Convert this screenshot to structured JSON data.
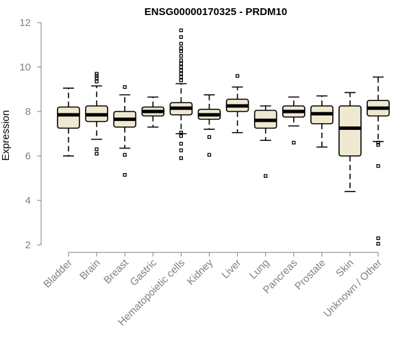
{
  "chart_data": {
    "type": "boxplot",
    "title": "ENSG00000170325 - PRDM10",
    "xlabel": "",
    "ylabel": "Expression",
    "ylim": [
      2,
      12
    ],
    "yticks": [
      2,
      4,
      6,
      8,
      10,
      12
    ],
    "grid": false,
    "legend": "none",
    "colors": {
      "box_fill": "#efe9d2",
      "stroke": "#000000",
      "axis": "#808080",
      "label": "#808080"
    },
    "categories": [
      "Bladder",
      "Brain",
      "Breast",
      "Gastric",
      "Hematopoietic cells",
      "Kidney",
      "Liver",
      "Lung",
      "Pancreas",
      "Prostate",
      "Skin",
      "Unknown / Other"
    ],
    "boxes": [
      {
        "label": "Bladder",
        "whisker_low": 6.0,
        "q1": 7.25,
        "median": 7.85,
        "q3": 8.2,
        "whisker_high": 9.05,
        "outliers": []
      },
      {
        "label": "Brain",
        "whisker_low": 6.75,
        "q1": 7.55,
        "median": 7.85,
        "q3": 8.25,
        "whisker_high": 9.15,
        "outliers": [
          9.35,
          9.5,
          9.6,
          9.7,
          6.3,
          6.1
        ]
      },
      {
        "label": "Breast",
        "whisker_low": 6.35,
        "q1": 7.3,
        "median": 7.65,
        "q3": 8.0,
        "whisker_high": 8.75,
        "outliers": [
          9.1,
          6.05,
          5.15
        ]
      },
      {
        "label": "Gastric",
        "whisker_low": 7.3,
        "q1": 7.8,
        "median": 8.0,
        "q3": 8.2,
        "whisker_high": 8.65,
        "outliers": []
      },
      {
        "label": "Hematopoietic cells",
        "whisker_low": 7.0,
        "q1": 7.85,
        "median": 8.15,
        "q3": 8.4,
        "whisker_high": 9.25,
        "outliers": [
          11.65,
          11.35,
          11.05,
          10.85,
          10.7,
          10.5,
          10.3,
          10.15,
          10.0,
          9.85,
          9.7,
          9.55,
          9.4,
          7.05,
          6.9,
          6.55,
          6.25,
          5.9
        ]
      },
      {
        "label": "Kidney",
        "whisker_low": 7.2,
        "q1": 7.65,
        "median": 7.85,
        "q3": 8.1,
        "whisker_high": 8.75,
        "outliers": [
          6.85,
          6.05
        ]
      },
      {
        "label": "Liver",
        "whisker_low": 7.05,
        "q1": 8.0,
        "median": 8.25,
        "q3": 8.55,
        "whisker_high": 9.1,
        "outliers": [
          9.6
        ]
      },
      {
        "label": "Lung",
        "whisker_low": 6.7,
        "q1": 7.25,
        "median": 7.6,
        "q3": 8.05,
        "whisker_high": 8.25,
        "outliers": [
          5.1
        ]
      },
      {
        "label": "Pancreas",
        "whisker_low": 7.35,
        "q1": 7.75,
        "median": 8.0,
        "q3": 8.25,
        "whisker_high": 8.65,
        "outliers": [
          6.6
        ]
      },
      {
        "label": "Prostate",
        "whisker_low": 6.4,
        "q1": 7.45,
        "median": 7.9,
        "q3": 8.25,
        "whisker_high": 8.7,
        "outliers": []
      },
      {
        "label": "Skin",
        "whisker_low": 4.4,
        "q1": 6.0,
        "median": 7.25,
        "q3": 8.25,
        "whisker_high": 8.85,
        "outliers": []
      },
      {
        "label": "Unknown / Other",
        "whisker_low": 6.65,
        "q1": 7.8,
        "median": 8.15,
        "q3": 8.5,
        "whisker_high": 9.55,
        "outliers": [
          6.6,
          6.5,
          5.55,
          2.3,
          2.05
        ]
      }
    ]
  }
}
